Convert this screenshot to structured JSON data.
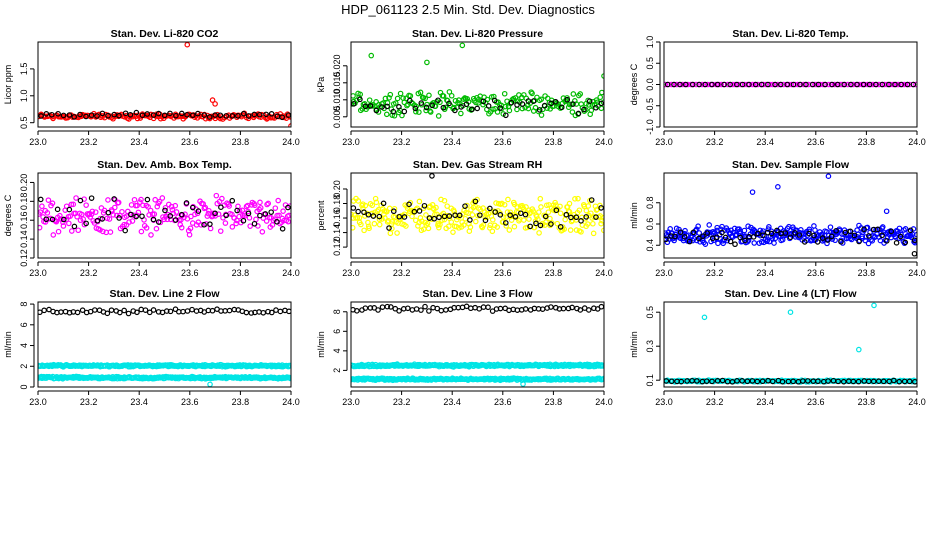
{
  "page_title": "HDP_061123  2.5 Min. Std. Dev. Diagnostics",
  "colors": {
    "co2": "#ff0000",
    "pressure": "#00bb00",
    "temp": "#ff00ff",
    "box_temp": "#ff00ff",
    "rh": "#ffff00",
    "sample_flow": "#0000ff",
    "line_flow": "#00e5e5",
    "reference": "#000000"
  },
  "chart_data": [
    {
      "id": "co2",
      "type": "scatter",
      "title": "Stan. Dev. Li-820 CO2",
      "xlabel": "",
      "ylabel": "Licor ppm",
      "xlim": [
        23.0,
        24.0
      ],
      "ylim": [
        0.42,
        2.0
      ],
      "xticks": [
        "23.0",
        "23.2",
        "23.4",
        "23.6",
        "23.8",
        "24.0"
      ],
      "yticks": [
        "0.5",
        "1.0",
        "1.5"
      ],
      "ytick_values": [
        0.5,
        1.0,
        1.5
      ],
      "series": [
        {
          "name": "all",
          "color_key": "co2",
          "base": 0.62,
          "spread": 0.06,
          "count": 180,
          "outliers": [
            [
              23.59,
              1.95
            ],
            [
              23.69,
              0.92
            ],
            [
              23.7,
              0.85
            ],
            [
              24.0,
              0.44
            ]
          ]
        },
        {
          "name": "subset",
          "color_key": "reference",
          "base": 0.64,
          "spread": 0.05,
          "count": 45,
          "outliers": []
        }
      ]
    },
    {
      "id": "pressure",
      "type": "scatter",
      "title": "Stan. Dev. Li-820 Pressure",
      "xlabel": "",
      "ylabel": "kPa",
      "xlim": [
        23.0,
        24.0
      ],
      "ylim": [
        0.002,
        0.027
      ],
      "xticks": [
        "23.0",
        "23.2",
        "23.4",
        "23.6",
        "23.8",
        "24.0"
      ],
      "yticks": [
        "0.005",
        "0.010",
        "0.015",
        "0.020"
      ],
      "ytick_values": [
        0.005,
        0.01,
        0.015,
        0.02
      ],
      "series": [
        {
          "name": "all",
          "color_key": "pressure",
          "base": 0.009,
          "spread": 0.004,
          "count": 210,
          "outliers": [
            [
              23.08,
              0.023
            ],
            [
              23.44,
              0.026
            ],
            [
              24.0,
              0.017
            ],
            [
              23.3,
              0.021
            ]
          ]
        },
        {
          "name": "subset",
          "color_key": "reference",
          "base": 0.008,
          "spread": 0.003,
          "count": 45,
          "outliers": []
        }
      ]
    },
    {
      "id": "temp",
      "type": "scatter",
      "title": "Stan. Dev. Li-820 Temp.",
      "xlabel": "",
      "ylabel": "degrees C",
      "xlim": [
        23.0,
        24.0
      ],
      "ylim": [
        -1.0,
        1.0
      ],
      "xticks": [
        "23.0",
        "23.2",
        "23.4",
        "23.6",
        "23.8",
        "24.0"
      ],
      "yticks": [
        "-1.0",
        "-0.5",
        "0.0",
        "0.5",
        "1.0"
      ],
      "ytick_values": [
        -1.0,
        -0.5,
        0.0,
        0.5,
        1.0
      ],
      "series": [
        {
          "name": "all",
          "color_key": "temp",
          "base": 0.0,
          "spread": 0.0,
          "count": 90,
          "outliers": []
        },
        {
          "name": "subset",
          "color_key": "reference",
          "base": 0.0,
          "spread": 0.0,
          "count": 40,
          "outliers": []
        }
      ]
    },
    {
      "id": "box_temp",
      "type": "scatter",
      "title": "Stan. Dev. Amb. Box Temp.",
      "xlabel": "",
      "ylabel": "degrees C",
      "xlim": [
        23.0,
        24.0
      ],
      "ylim": [
        0.12,
        0.21
      ],
      "xticks": [
        "23.0",
        "23.2",
        "23.4",
        "23.6",
        "23.8",
        "24.0"
      ],
      "yticks": [
        "0.12",
        "0.14",
        "0.16",
        "0.18",
        "0.20"
      ],
      "ytick_values": [
        0.12,
        0.14,
        0.16,
        0.18,
        0.2
      ],
      "series": [
        {
          "name": "all",
          "color_key": "box_temp",
          "base": 0.165,
          "spread": 0.022,
          "count": 240,
          "outliers": []
        },
        {
          "name": "subset",
          "color_key": "reference",
          "base": 0.165,
          "spread": 0.02,
          "count": 45,
          "outliers": []
        }
      ]
    },
    {
      "id": "rh",
      "type": "scatter",
      "title": "Stan. Dev. Gas Stream RH",
      "xlabel": "",
      "ylabel": "percent",
      "xlim": [
        23.0,
        24.0
      ],
      "ylim": [
        0.105,
        0.222
      ],
      "xticks": [
        "23.0",
        "23.2",
        "23.4",
        "23.6",
        "23.8",
        "24.0"
      ],
      "yticks": [
        "0.12",
        "0.14",
        "0.16",
        "0.18",
        "0.20"
      ],
      "ytick_values": [
        0.12,
        0.14,
        0.16,
        0.18,
        0.2
      ],
      "series": [
        {
          "name": "all",
          "color_key": "rh",
          "base": 0.163,
          "spread": 0.027,
          "count": 300,
          "outliers": []
        },
        {
          "name": "subset",
          "color_key": "reference",
          "base": 0.163,
          "spread": 0.025,
          "count": 50,
          "outliers": [
            [
              23.32,
              0.218
            ]
          ]
        }
      ]
    },
    {
      "id": "sample_flow",
      "type": "scatter",
      "title": "Stan. Dev. Sample Flow",
      "xlabel": "",
      "ylabel": "ml/min",
      "xlim": [
        23.0,
        24.0
      ],
      "ylim": [
        0.28,
        1.08
      ],
      "xticks": [
        "23.0",
        "23.2",
        "23.4",
        "23.6",
        "23.8",
        "24.0"
      ],
      "yticks": [
        "0.4",
        "0.6",
        "0.8"
      ],
      "ytick_values": [
        0.4,
        0.6,
        0.8
      ],
      "series": [
        {
          "name": "all",
          "color_key": "sample_flow",
          "base": 0.5,
          "spread": 0.1,
          "count": 300,
          "outliers": [
            [
              23.65,
              1.05
            ],
            [
              23.45,
              0.95
            ],
            [
              23.35,
              0.9
            ],
            [
              23.88,
              0.72
            ]
          ]
        },
        {
          "name": "subset",
          "color_key": "reference",
          "base": 0.48,
          "spread": 0.09,
          "count": 55,
          "outliers": [
            [
              23.99,
              0.32
            ]
          ]
        }
      ]
    },
    {
      "id": "line2",
      "type": "scatter",
      "title": "Stan. Dev. Line 2 Flow",
      "xlabel": "",
      "ylabel": "ml/min",
      "xlim": [
        23.0,
        24.0
      ],
      "ylim": [
        0,
        8.2
      ],
      "xticks": [
        "23.0",
        "23.2",
        "23.4",
        "23.6",
        "23.8",
        "24.0"
      ],
      "yticks": [
        "0",
        "2",
        "4",
        "6",
        "8"
      ],
      "ytick_values": [
        0,
        2,
        4,
        6,
        8
      ],
      "series": [
        {
          "name": "band_high",
          "color_key": "line_flow",
          "base": 2.05,
          "spread": 0.12,
          "count": 300,
          "outliers": []
        },
        {
          "name": "band_low",
          "color_key": "line_flow",
          "base": 0.9,
          "spread": 0.12,
          "count": 300,
          "outliers": [
            [
              23.68,
              0.25
            ]
          ]
        },
        {
          "name": "upper",
          "color_key": "reference",
          "base": 7.3,
          "spread": 0.25,
          "count": 60,
          "outliers": []
        }
      ]
    },
    {
      "id": "line3",
      "type": "scatter",
      "title": "Stan. Dev. Line 3 Flow",
      "xlabel": "",
      "ylabel": "ml/min",
      "xlim": [
        23.0,
        24.0
      ],
      "ylim": [
        0.3,
        9.0
      ],
      "xticks": [
        "23.0",
        "23.2",
        "23.4",
        "23.6",
        "23.8",
        "24.0"
      ],
      "yticks": [
        "2",
        "4",
        "6",
        "8"
      ],
      "ytick_values": [
        2,
        4,
        6,
        8
      ],
      "series": [
        {
          "name": "band_high",
          "color_key": "line_flow",
          "base": 2.5,
          "spread": 0.15,
          "count": 300,
          "outliers": []
        },
        {
          "name": "band_low",
          "color_key": "line_flow",
          "base": 1.1,
          "spread": 0.12,
          "count": 300,
          "outliers": [
            [
              23.68,
              0.6
            ]
          ]
        },
        {
          "name": "upper",
          "color_key": "reference",
          "base": 8.3,
          "spread": 0.3,
          "count": 60,
          "outliers": []
        }
      ]
    },
    {
      "id": "line4",
      "type": "scatter",
      "title": "Stan. Dev. Line 4 (LT) Flow",
      "xlabel": "",
      "ylabel": "ml/min",
      "xlim": [
        23.0,
        24.0
      ],
      "ylim": [
        0.06,
        0.56
      ],
      "xticks": [
        "23.0",
        "23.2",
        "23.4",
        "23.6",
        "23.8",
        "24.0"
      ],
      "yticks": [
        "0.1",
        "0.3",
        "0.5"
      ],
      "ytick_values": [
        0.1,
        0.3,
        0.5
      ],
      "series": [
        {
          "name": "all",
          "color_key": "line_flow",
          "base": 0.095,
          "spread": 0.006,
          "count": 240,
          "outliers": [
            [
              23.16,
              0.47
            ],
            [
              23.5,
              0.5
            ],
            [
              23.77,
              0.28
            ],
            [
              23.83,
              0.54
            ]
          ]
        },
        {
          "name": "subset",
          "color_key": "reference",
          "base": 0.094,
          "spread": 0.005,
          "count": 50,
          "outliers": []
        }
      ]
    }
  ]
}
